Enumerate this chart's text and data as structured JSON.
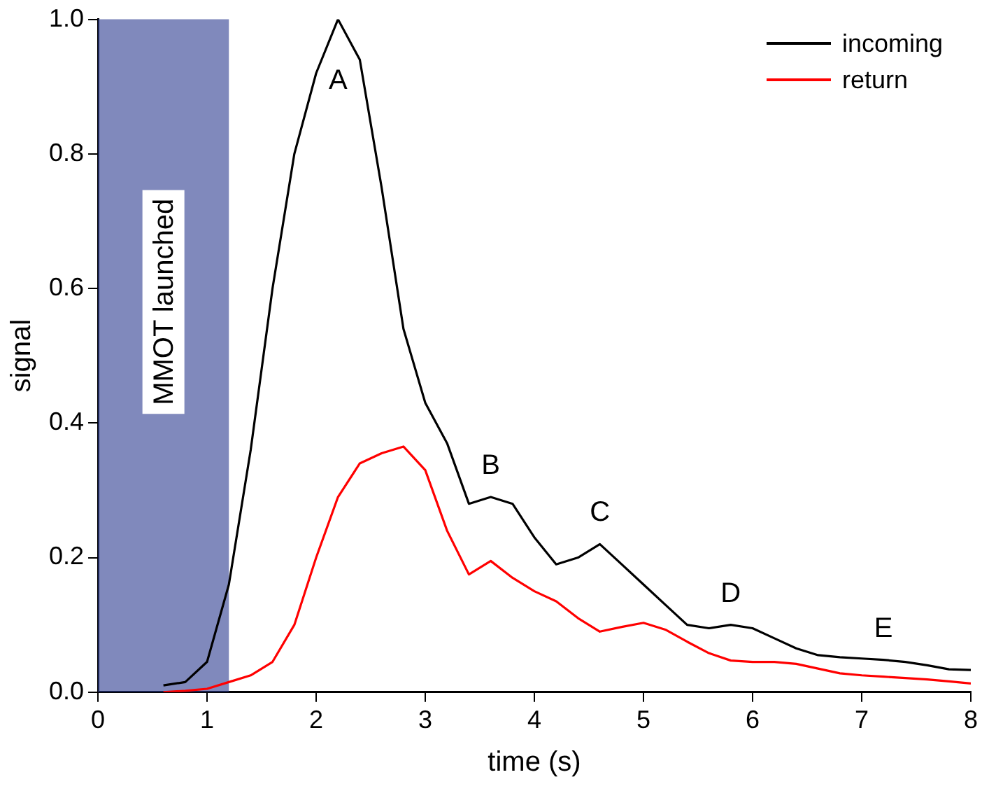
{
  "chart_data": {
    "type": "line",
    "xlabel": "time (s)",
    "ylabel": "signal",
    "x": [
      0.6,
      0.8,
      1.0,
      1.2,
      1.4,
      1.6,
      1.8,
      2.0,
      2.2,
      2.4,
      2.6,
      2.8,
      3.0,
      3.2,
      3.4,
      3.6,
      3.8,
      4.0,
      4.2,
      4.4,
      4.6,
      4.8,
      5.0,
      5.2,
      5.4,
      5.6,
      5.8,
      6.0,
      6.2,
      6.4,
      6.6,
      6.8,
      7.0,
      7.2,
      7.4,
      7.6,
      7.8,
      8.0
    ],
    "series": [
      {
        "name": "incoming",
        "color": "#000000",
        "values": [
          0.01,
          0.015,
          0.045,
          0.16,
          0.36,
          0.6,
          0.8,
          0.92,
          1.0,
          0.94,
          0.75,
          0.54,
          0.43,
          0.37,
          0.28,
          0.29,
          0.28,
          0.23,
          0.19,
          0.2,
          0.22,
          0.19,
          0.16,
          0.13,
          0.1,
          0.095,
          0.1,
          0.095,
          0.08,
          0.065,
          0.055,
          0.052,
          0.05,
          0.048,
          0.045,
          0.04,
          0.034,
          0.033
        ]
      },
      {
        "name": "return",
        "color": "#ff0000",
        "values": [
          0.0,
          0.002,
          0.005,
          0.015,
          0.025,
          0.045,
          0.1,
          0.2,
          0.29,
          0.34,
          0.355,
          0.365,
          0.33,
          0.24,
          0.175,
          0.195,
          0.17,
          0.15,
          0.135,
          0.11,
          0.09,
          0.097,
          0.103,
          0.093,
          0.075,
          0.058,
          0.047,
          0.045,
          0.045,
          0.042,
          0.035,
          0.028,
          0.025,
          0.023,
          0.021,
          0.019,
          0.016,
          0.013
        ]
      }
    ],
    "xlim": [
      0,
      8
    ],
    "xticks": [
      0,
      1,
      2,
      3,
      4,
      5,
      6,
      7,
      8
    ],
    "ylim": [
      0,
      1
    ],
    "yticks": [
      {
        "value": 0,
        "label": "0.0"
      },
      {
        "value": 0.2,
        "label": "0.2"
      },
      {
        "value": 0.4,
        "label": "0.4"
      },
      {
        "value": 0.6,
        "label": "0.6"
      },
      {
        "value": 0.8,
        "label": "0.8"
      },
      {
        "value": 1,
        "label": "1.0"
      }
    ],
    "bands": [
      {
        "axis": "x",
        "from": 0,
        "to": 1.2,
        "label": "MMOT launched",
        "color": "#2b3a8f"
      }
    ],
    "annotations": [
      {
        "text": "A",
        "x": 2.2,
        "y": 1.0
      },
      {
        "text": "B",
        "x": 3.6,
        "y": 0.29
      },
      {
        "text": "C",
        "x": 4.6,
        "y": 0.22
      },
      {
        "text": "D",
        "x": 5.8,
        "y": 0.1
      },
      {
        "text": "E",
        "x": 7.2,
        "y": 0.048
      }
    ],
    "legend": "top right",
    "grid": false,
    "marker": "none",
    "line_style": "solid"
  }
}
